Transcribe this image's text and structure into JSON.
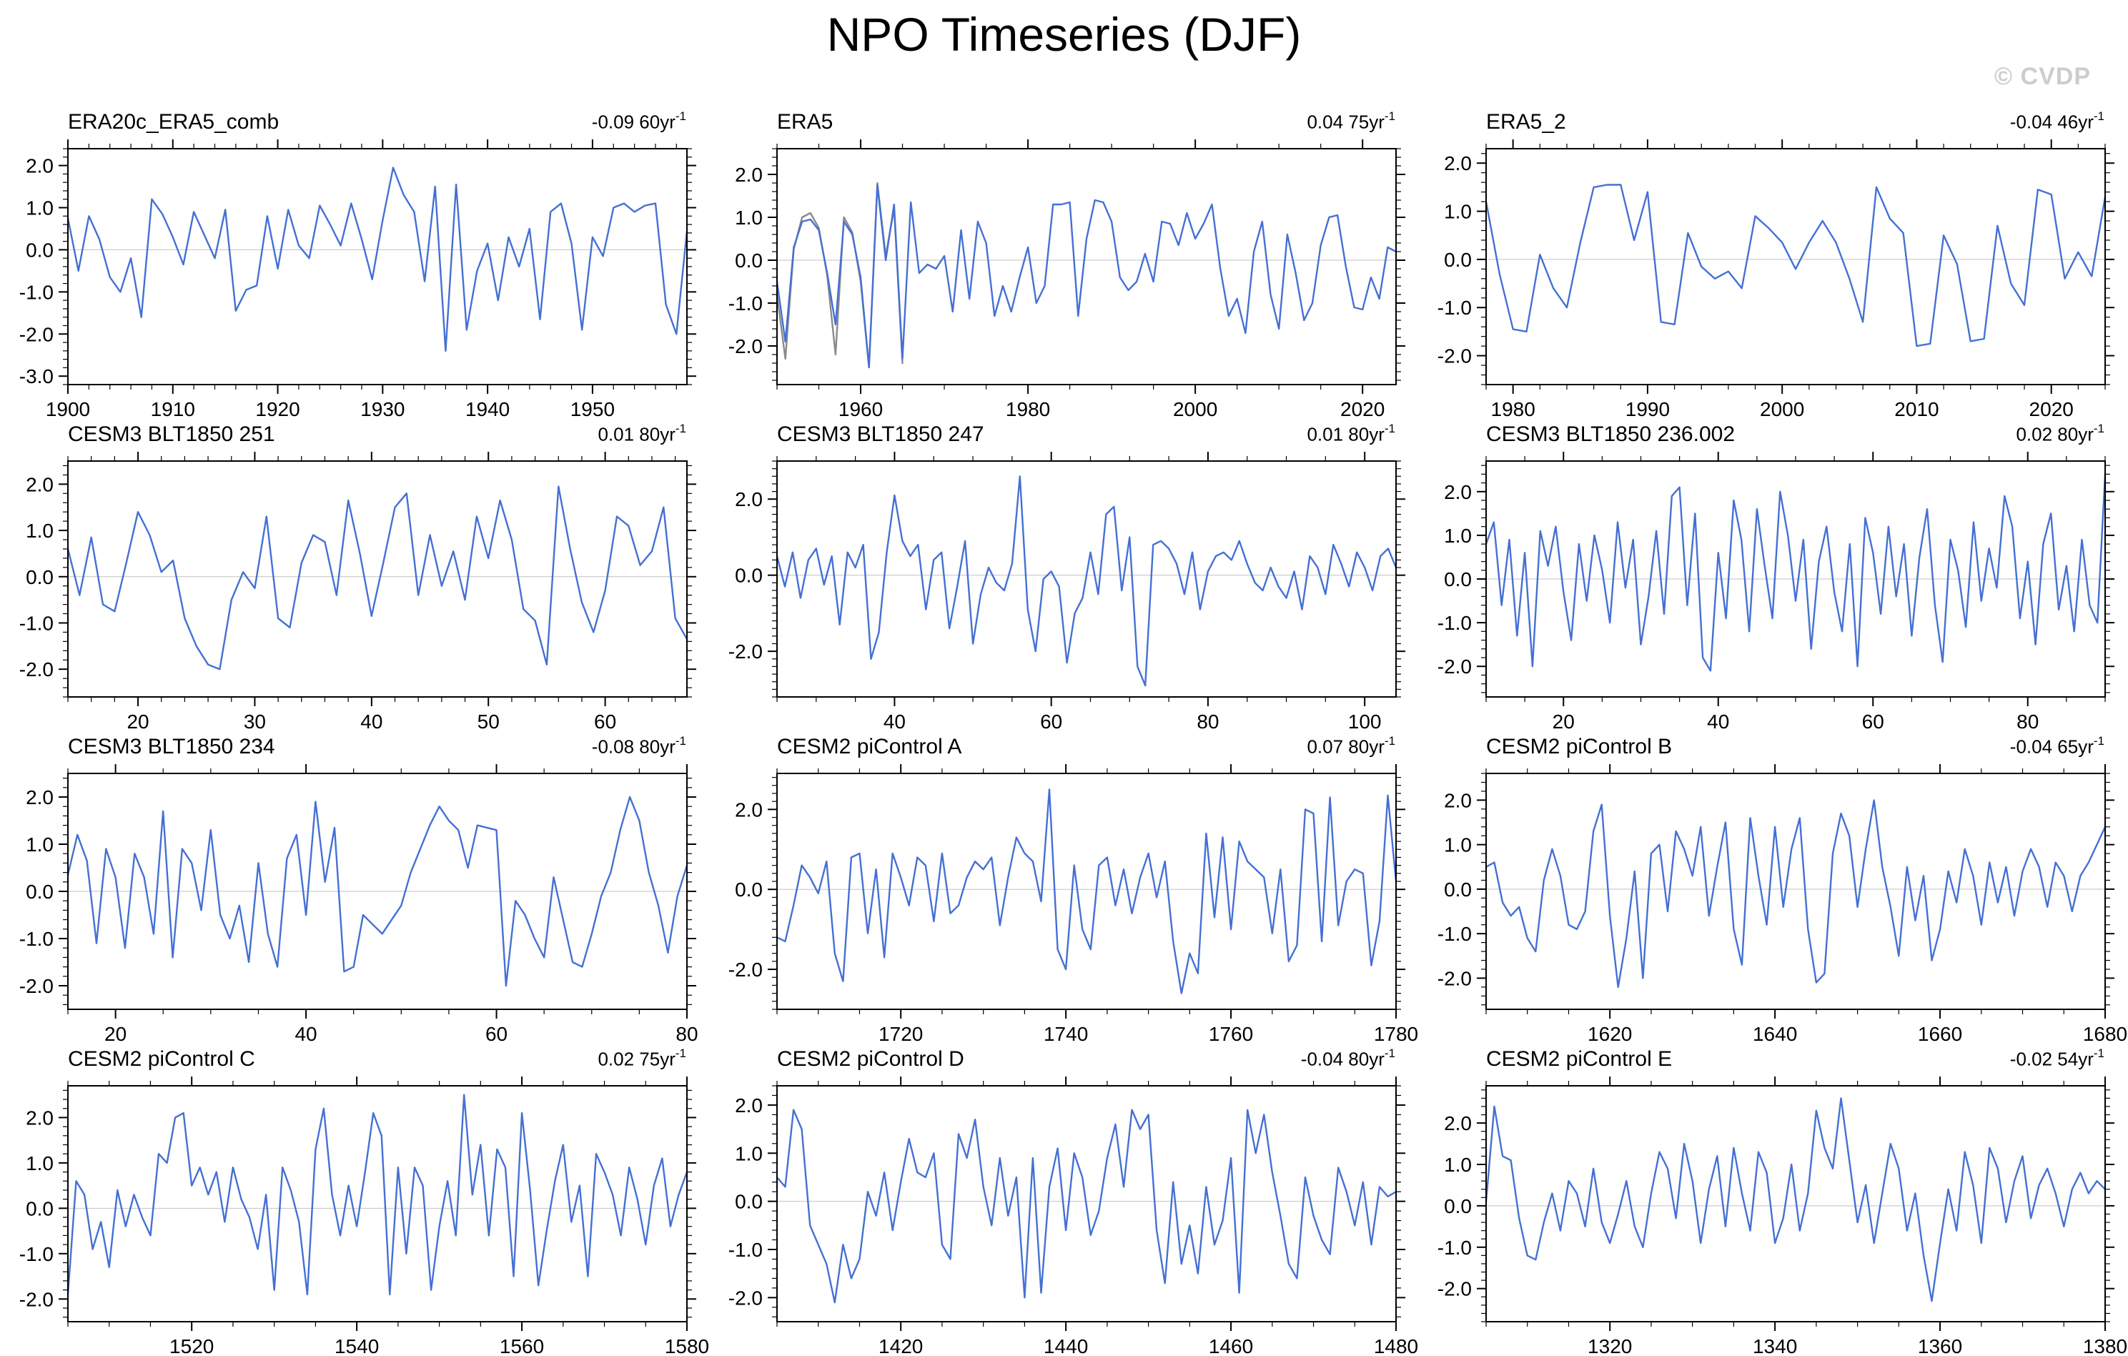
{
  "page": {
    "title": "NPO Timeseries (DJF)",
    "watermark": "© CVDP"
  },
  "meta": {
    "trend_exp": "-1",
    "line_color": "#4470d4",
    "overlap_color": "#8a8a8a",
    "zero_line_color": "#c2c2c2",
    "frame_color": "#000000"
  },
  "chart_data": {
    "type": "line",
    "title": "NPO Timeseries (DJF)",
    "legend_position": "none",
    "grid": "zero-line-only",
    "panels": [
      {
        "title": "ERA20c_ERA5_comb",
        "trend": "-0.09 60yr",
        "x_start": 1900,
        "xticks": [
          1900,
          1910,
          1920,
          1930,
          1940,
          1950
        ],
        "x_minor": 2,
        "ylim": [
          -3.2,
          2.4
        ],
        "yticks": [
          2.0,
          1.0,
          0.0,
          -1.0,
          -2.0,
          -3.0
        ],
        "y_minor": 0.2,
        "values": [
          0.75,
          -0.5,
          0.8,
          0.25,
          -0.65,
          -1.0,
          -0.2,
          -1.6,
          1.2,
          0.85,
          0.3,
          -0.35,
          0.9,
          0.35,
          -0.2,
          0.95,
          -1.45,
          -0.95,
          -0.85,
          0.8,
          -0.45,
          0.95,
          0.1,
          -0.2,
          1.05,
          0.6,
          0.1,
          1.1,
          0.25,
          -0.7,
          0.7,
          1.95,
          1.3,
          0.9,
          -0.75,
          1.5,
          -2.4,
          1.55,
          -1.9,
          -0.5,
          0.15,
          -1.2,
          0.3,
          -0.4,
          0.5,
          -1.65,
          0.9,
          1.1,
          0.15,
          -1.9,
          0.3,
          -0.15,
          1.0,
          1.1,
          0.9,
          1.05,
          1.1,
          -1.3,
          -2.0,
          0.45
        ]
      },
      {
        "title": "ERA5",
        "trend": "0.04 75yr",
        "x_start": 1950,
        "xticks": [
          1960,
          1980,
          2000,
          2020
        ],
        "x_minor": 5,
        "ylim": [
          -2.9,
          2.6
        ],
        "yticks": [
          2.0,
          1.0,
          0.0,
          -1.0,
          -2.0
        ],
        "y_minor": 0.2,
        "values": [
          -0.5,
          -1.9,
          0.3,
          0.9,
          0.95,
          0.7,
          -0.3,
          -1.5,
          0.9,
          0.6,
          -0.4,
          -2.5,
          1.75,
          0.0,
          1.3,
          -2.3,
          1.35,
          -0.3,
          -0.1,
          -0.2,
          0.1,
          -1.2,
          0.7,
          -0.9,
          0.9,
          0.4,
          -1.3,
          -0.6,
          -1.2,
          -0.4,
          0.3,
          -1.0,
          -0.6,
          1.3,
          1.3,
          1.35,
          -1.3,
          0.5,
          1.4,
          1.35,
          0.9,
          -0.4,
          -0.7,
          -0.5,
          0.15,
          -0.5,
          0.9,
          0.85,
          0.35,
          1.1,
          0.5,
          0.85,
          1.3,
          -0.2,
          -1.3,
          -0.9,
          -1.7,
          0.2,
          0.9,
          -0.8,
          -1.6,
          0.6,
          -0.3,
          -1.4,
          -1.0,
          0.35,
          1.0,
          1.05,
          -0.15,
          -1.1,
          -1.15,
          -0.4,
          -0.9,
          0.3,
          0.2
        ],
        "series2": {
          "name": "overlap-comparison",
          "x_start": 1950,
          "values": [
            -0.8,
            -2.3,
            0.25,
            1.0,
            1.1,
            0.75,
            -0.35,
            -2.2,
            1.0,
            0.65,
            -0.5,
            -2.5,
            1.8,
            0.1,
            1.2,
            -2.4
          ]
        }
      },
      {
        "title": "ERA5_2",
        "trend": "-0.04 46yr",
        "x_start": 1978,
        "xticks": [
          1980,
          1990,
          2000,
          2010,
          2020
        ],
        "x_minor": 2,
        "ylim": [
          -2.6,
          2.3
        ],
        "yticks": [
          2.0,
          1.0,
          0.0,
          -1.0,
          -2.0
        ],
        "y_minor": 0.2,
        "values": [
          1.2,
          -0.3,
          -1.45,
          -1.5,
          0.1,
          -0.6,
          -1.0,
          0.35,
          1.5,
          1.55,
          1.55,
          0.4,
          1.4,
          -1.3,
          -1.35,
          0.55,
          -0.15,
          -0.4,
          -0.25,
          -0.6,
          0.9,
          0.65,
          0.35,
          -0.2,
          0.35,
          0.8,
          0.35,
          -0.4,
          -1.3,
          1.5,
          0.85,
          0.55,
          -1.8,
          -1.75,
          0.5,
          -0.1,
          -1.7,
          -1.65,
          0.7,
          -0.5,
          -0.95,
          1.45,
          1.35,
          -0.4,
          0.15,
          -0.35,
          1.3
        ]
      },
      {
        "title": "CESM3 BLT1850 251",
        "trend": "0.01 80yr",
        "x_start": 14,
        "xticks": [
          20,
          30,
          40,
          50,
          60
        ],
        "x_minor": 2,
        "ylim": [
          -2.6,
          2.5
        ],
        "yticks": [
          2.0,
          1.0,
          0.0,
          -1.0,
          -2.0
        ],
        "y_minor": 0.2,
        "values": [
          0.6,
          -0.4,
          0.85,
          -0.6,
          -0.75,
          0.3,
          1.4,
          0.9,
          0.1,
          0.35,
          -0.9,
          -1.5,
          -1.9,
          -2.0,
          -0.5,
          0.1,
          -0.25,
          1.3,
          -0.9,
          -1.1,
          0.3,
          0.9,
          0.75,
          -0.4,
          1.65,
          0.5,
          -0.85,
          0.3,
          1.5,
          1.8,
          -0.4,
          0.9,
          -0.2,
          0.55,
          -0.5,
          1.3,
          0.4,
          1.65,
          0.8,
          -0.7,
          -0.95,
          -1.9,
          1.95,
          0.6,
          -0.55,
          -1.2,
          -0.3,
          1.3,
          1.1,
          0.25,
          0.55,
          1.5,
          -0.9,
          -1.35
        ]
      },
      {
        "title": "CESM3 BLT1850 247",
        "trend": "0.01 80yr",
        "x_start": 25,
        "xticks": [
          40,
          60,
          80,
          100
        ],
        "x_minor": 5,
        "ylim": [
          -3.2,
          3.0
        ],
        "yticks": [
          2.0,
          0.0,
          -2.0
        ],
        "y_minor": 0.2,
        "values": [
          0.5,
          -0.3,
          0.6,
          -0.6,
          0.4,
          0.7,
          -0.25,
          0.5,
          -1.3,
          0.6,
          0.2,
          0.8,
          -2.2,
          -1.5,
          0.6,
          2.1,
          0.9,
          0.5,
          0.8,
          -0.9,
          0.4,
          0.6,
          -1.4,
          -0.3,
          0.9,
          -1.8,
          -0.5,
          0.2,
          -0.2,
          -0.4,
          0.3,
          2.6,
          -0.9,
          -2.0,
          -0.1,
          0.1,
          -0.3,
          -2.3,
          -1.0,
          -0.6,
          0.6,
          -0.5,
          1.6,
          1.8,
          -0.4,
          1.0,
          -2.4,
          -2.9,
          0.8,
          0.9,
          0.7,
          0.3,
          -0.5,
          0.6,
          -0.9,
          0.1,
          0.5,
          0.6,
          0.4,
          0.9,
          0.3,
          -0.2,
          -0.4,
          0.2,
          -0.3,
          -0.6,
          0.1,
          -0.9,
          0.5,
          0.2,
          -0.5,
          0.8,
          0.3,
          -0.3,
          0.6,
          0.2,
          -0.4,
          0.5,
          0.7,
          0.2
        ]
      },
      {
        "title": "CESM3 BLT1850 236.002",
        "trend": "0.02 80yr",
        "x_start": 10,
        "xticks": [
          20,
          40,
          60,
          80
        ],
        "x_minor": 5,
        "ylim": [
          -2.7,
          2.7
        ],
        "yticks": [
          2.0,
          1.0,
          0.0,
          -1.0,
          -2.0
        ],
        "y_minor": 0.2,
        "values": [
          0.8,
          1.3,
          -0.6,
          0.9,
          -1.3,
          0.6,
          -2.0,
          1.1,
          0.3,
          1.2,
          -0.3,
          -1.4,
          0.8,
          -0.5,
          1.0,
          0.2,
          -1.0,
          1.3,
          -0.2,
          0.9,
          -1.5,
          -0.4,
          1.1,
          -0.8,
          1.9,
          2.1,
          -0.6,
          1.5,
          -1.8,
          -2.1,
          0.6,
          -0.9,
          1.8,
          0.9,
          -1.2,
          1.6,
          0.3,
          -0.9,
          2.0,
          1.0,
          -0.5,
          0.9,
          -1.6,
          0.4,
          1.2,
          -0.3,
          -1.2,
          0.8,
          -2.0,
          1.4,
          0.6,
          -0.8,
          1.2,
          -0.4,
          0.8,
          -1.3,
          0.5,
          1.6,
          -0.6,
          -1.9,
          0.9,
          0.2,
          -1.1,
          1.3,
          -0.5,
          0.7,
          -0.2,
          1.9,
          1.2,
          -0.9,
          0.4,
          -1.5,
          0.8,
          1.5,
          -0.7,
          0.3,
          -1.2,
          0.9,
          -0.6,
          -1.0,
          2.4
        ]
      },
      {
        "title": "CESM3 BLT1850 234",
        "trend": "-0.08 80yr",
        "x_start": 15,
        "xticks": [
          20,
          40,
          60,
          80
        ],
        "x_minor": 5,
        "ylim": [
          -2.5,
          2.5
        ],
        "yticks": [
          2.0,
          1.0,
          0.0,
          -1.0,
          -2.0
        ],
        "y_minor": 0.2,
        "values": [
          0.35,
          1.2,
          0.65,
          -1.1,
          0.9,
          0.3,
          -1.2,
          0.8,
          0.3,
          -0.9,
          1.7,
          -1.4,
          0.9,
          0.6,
          -0.4,
          1.3,
          -0.5,
          -1.0,
          -0.3,
          -1.5,
          0.6,
          -0.9,
          -1.6,
          0.7,
          1.2,
          -0.5,
          1.9,
          0.2,
          1.35,
          -1.7,
          -1.6,
          -0.5,
          -0.7,
          -0.9,
          -0.6,
          -0.3,
          0.4,
          0.9,
          1.4,
          1.8,
          1.5,
          1.3,
          0.5,
          1.4,
          1.35,
          1.3,
          -2.0,
          -0.2,
          -0.5,
          -1.0,
          -1.4,
          0.3,
          -0.6,
          -1.5,
          -1.6,
          -0.9,
          -0.1,
          0.4,
          1.3,
          2.0,
          1.5,
          0.4,
          -0.3,
          -1.3,
          -0.1,
          0.55
        ]
      },
      {
        "title": "CESM2 piControl A",
        "trend": "0.07 80yr",
        "x_start": 1705,
        "xticks": [
          1720,
          1740,
          1760,
          1780
        ],
        "x_minor": 5,
        "ylim": [
          -3.0,
          2.9
        ],
        "yticks": [
          2.0,
          0.0,
          -2.0
        ],
        "y_minor": 0.2,
        "values": [
          -1.2,
          -1.3,
          -0.4,
          0.6,
          0.3,
          -0.1,
          0.7,
          -1.6,
          -2.3,
          0.8,
          0.9,
          -1.1,
          0.5,
          -1.7,
          0.9,
          0.3,
          -0.4,
          0.8,
          0.6,
          -0.8,
          0.9,
          -0.6,
          -0.4,
          0.3,
          0.7,
          0.5,
          0.8,
          -0.9,
          0.3,
          1.3,
          0.9,
          0.7,
          -0.3,
          2.5,
          -1.5,
          -2.0,
          0.6,
          -1.0,
          -1.5,
          0.6,
          0.8,
          -0.4,
          0.5,
          -0.6,
          0.3,
          0.9,
          -0.2,
          0.7,
          -1.3,
          -2.6,
          -1.6,
          -2.1,
          1.4,
          -0.7,
          1.3,
          -1.0,
          1.2,
          0.7,
          0.5,
          0.3,
          -1.1,
          0.5,
          -1.8,
          -1.4,
          2.0,
          1.9,
          -1.3,
          2.3,
          -0.9,
          0.2,
          0.5,
          0.4,
          -1.9,
          -0.8,
          2.35,
          0.2
        ]
      },
      {
        "title": "CESM2 piControl B",
        "trend": "-0.04 65yr",
        "x_start": 1605,
        "xticks": [
          1620,
          1640,
          1660,
          1680
        ],
        "x_minor": 5,
        "ylim": [
          -2.7,
          2.6
        ],
        "yticks": [
          2.0,
          1.0,
          0.0,
          -1.0,
          -2.0
        ],
        "y_minor": 0.2,
        "values": [
          0.5,
          0.6,
          -0.3,
          -0.6,
          -0.4,
          -1.1,
          -1.4,
          0.2,
          0.9,
          0.3,
          -0.8,
          -0.9,
          -0.5,
          1.3,
          1.9,
          -0.6,
          -2.2,
          -1.1,
          0.4,
          -2.0,
          0.8,
          1.0,
          -0.5,
          1.3,
          0.9,
          0.3,
          1.4,
          -0.6,
          0.5,
          1.5,
          -0.9,
          -1.7,
          1.6,
          0.3,
          -0.8,
          1.4,
          -0.4,
          0.9,
          1.6,
          -0.9,
          -2.1,
          -1.9,
          0.8,
          1.7,
          1.2,
          -0.4,
          0.9,
          2.0,
          0.5,
          -0.4,
          -1.5,
          0.5,
          -0.7,
          0.3,
          -1.6,
          -0.9,
          0.4,
          -0.3,
          0.9,
          0.3,
          -0.8,
          0.6,
          -0.3,
          0.5,
          -0.6,
          0.4,
          0.9,
          0.5,
          -0.4,
          0.6,
          0.3,
          -0.5,
          0.3,
          0.6,
          1.0,
          1.4
        ]
      },
      {
        "title": "CESM2 piControl C",
        "trend": "0.02 75yr",
        "x_start": 1505,
        "xticks": [
          1520,
          1540,
          1560,
          1580
        ],
        "x_minor": 5,
        "ylim": [
          -2.5,
          2.7
        ],
        "yticks": [
          2.0,
          1.0,
          0.0,
          -1.0,
          -2.0
        ],
        "y_minor": 0.2,
        "values": [
          -1.9,
          0.6,
          0.3,
          -0.9,
          -0.3,
          -1.3,
          0.4,
          -0.4,
          0.3,
          -0.2,
          -0.6,
          1.2,
          1.0,
          2.0,
          2.1,
          0.5,
          0.9,
          0.3,
          0.8,
          -0.3,
          0.9,
          0.2,
          -0.2,
          -0.9,
          0.3,
          -1.8,
          0.9,
          0.4,
          -0.3,
          -1.9,
          1.3,
          2.2,
          0.3,
          -0.6,
          0.5,
          -0.4,
          0.8,
          2.1,
          1.6,
          -1.9,
          0.9,
          -1.0,
          0.9,
          0.5,
          -1.8,
          -0.4,
          0.6,
          -0.6,
          2.5,
          0.3,
          1.4,
          -0.6,
          1.3,
          0.9,
          -1.5,
          2.1,
          0.4,
          -1.7,
          -0.5,
          0.6,
          1.4,
          -0.3,
          0.5,
          -1.5,
          1.2,
          0.8,
          0.3,
          -0.6,
          0.9,
          0.2,
          -0.8,
          0.5,
          1.1,
          -0.4,
          0.3,
          0.8
        ]
      },
      {
        "title": "CESM2 piControl D",
        "trend": "-0.04 80yr",
        "x_start": 1405,
        "xticks": [
          1420,
          1440,
          1460,
          1480
        ],
        "x_minor": 5,
        "ylim": [
          -2.5,
          2.4
        ],
        "yticks": [
          2.0,
          1.0,
          0.0,
          -1.0,
          -2.0
        ],
        "y_minor": 0.2,
        "values": [
          0.5,
          0.3,
          1.9,
          1.5,
          -0.5,
          -0.9,
          -1.3,
          -2.1,
          -0.9,
          -1.6,
          -1.2,
          0.2,
          -0.3,
          0.6,
          -0.6,
          0.4,
          1.3,
          0.6,
          0.5,
          1.0,
          -0.9,
          -1.2,
          1.4,
          0.9,
          1.7,
          0.3,
          -0.5,
          0.9,
          -0.3,
          0.5,
          -2.0,
          0.9,
          -1.9,
          0.3,
          1.1,
          -0.6,
          1.0,
          0.5,
          -0.7,
          -0.2,
          0.9,
          1.6,
          0.3,
          1.9,
          1.5,
          1.8,
          -0.6,
          -1.7,
          0.4,
          -1.3,
          -0.5,
          -1.5,
          0.3,
          -0.9,
          -0.4,
          0.9,
          -1.9,
          1.9,
          1.0,
          1.8,
          0.6,
          -0.3,
          -1.3,
          -1.6,
          0.5,
          -0.3,
          -0.8,
          -1.1,
          0.7,
          0.2,
          -0.5,
          0.4,
          -0.9,
          0.3,
          0.1,
          0.2
        ]
      },
      {
        "title": "CESM2 piControl E",
        "trend": "-0.02 54yr",
        "x_start": 1305,
        "xticks": [
          1320,
          1340,
          1360,
          1380
        ],
        "x_minor": 5,
        "ylim": [
          -2.8,
          2.9
        ],
        "yticks": [
          2.0,
          1.0,
          0.0,
          -1.0,
          -2.0
        ],
        "y_minor": 0.2,
        "values": [
          0.1,
          2.4,
          1.2,
          1.1,
          -0.3,
          -1.2,
          -1.3,
          -0.4,
          0.3,
          -0.6,
          0.6,
          0.3,
          -0.5,
          0.9,
          -0.4,
          -0.9,
          -0.2,
          0.6,
          -0.5,
          -1.0,
          0.3,
          1.3,
          0.9,
          -0.3,
          1.5,
          0.6,
          -0.9,
          0.4,
          1.2,
          -0.5,
          1.4,
          0.3,
          -0.6,
          1.3,
          0.8,
          -0.9,
          -0.3,
          1.0,
          -0.6,
          0.3,
          2.3,
          1.4,
          0.9,
          2.6,
          1.1,
          -0.4,
          0.5,
          -0.9,
          0.3,
          1.5,
          0.9,
          -0.6,
          0.3,
          -1.2,
          -2.3,
          -0.9,
          0.4,
          -0.6,
          1.3,
          0.5,
          -0.9,
          1.4,
          0.9,
          -0.4,
          0.6,
          1.2,
          -0.3,
          0.5,
          0.9,
          0.3,
          -0.5,
          0.4,
          0.8,
          0.3,
          0.6,
          0.4
        ]
      }
    ]
  }
}
